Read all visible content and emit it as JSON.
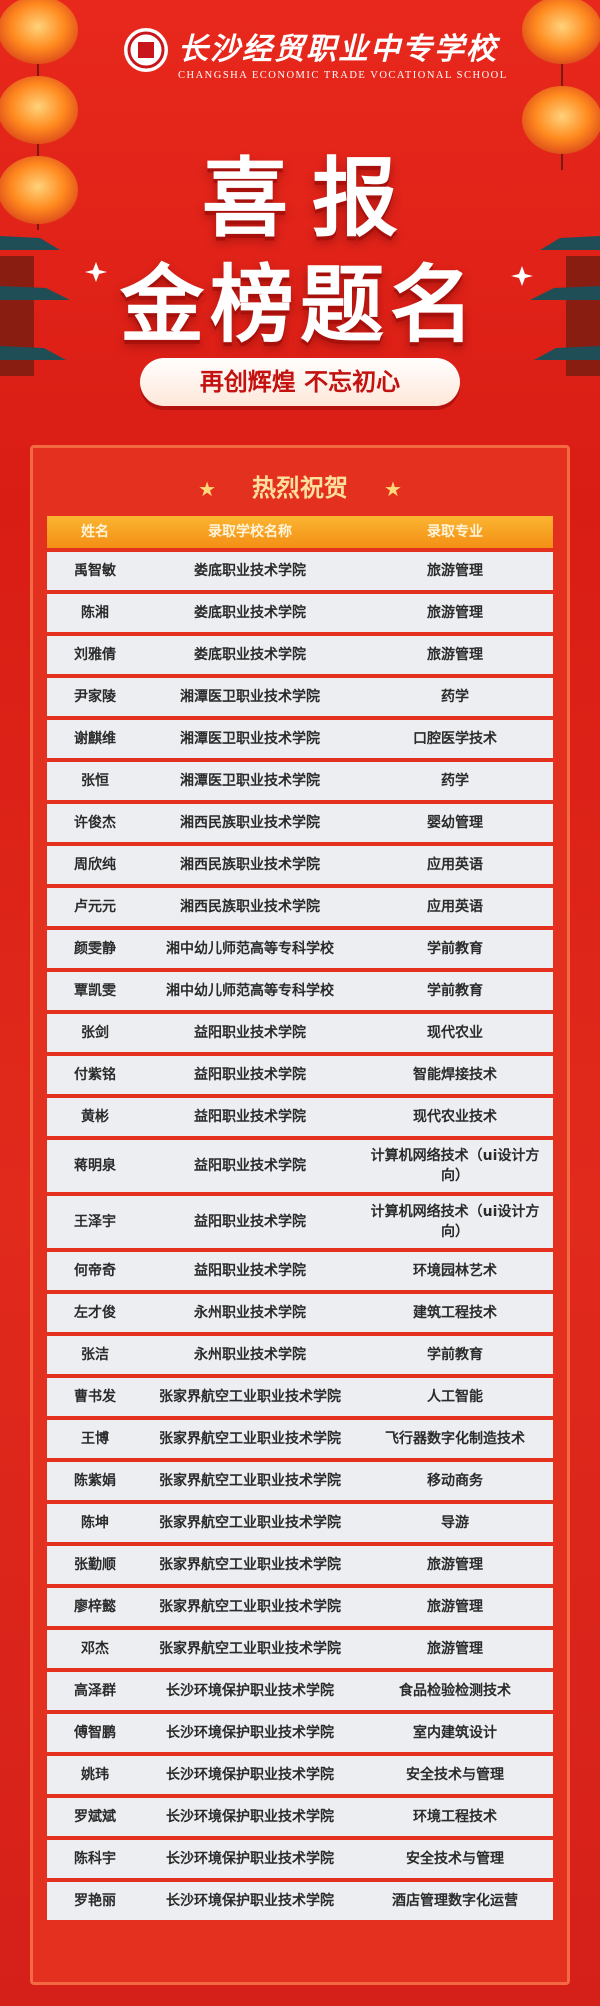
{
  "header": {
    "school_name": "长沙经贸职业中专学校",
    "school_name_en": "CHANGSHA ECONOMIC TRADE VOCATIONAL SCHOOL"
  },
  "title": {
    "line1": "喜报",
    "line2": "金榜题名"
  },
  "slogan": "再创辉煌 不忘初心",
  "section_title": "热烈祝贺",
  "table": {
    "columns": [
      "姓名",
      "录取学校名称",
      "录取专业"
    ],
    "rows": [
      [
        "禹智敏",
        "娄底职业技术学院",
        "旅游管理"
      ],
      [
        "陈湘",
        "娄底职业技术学院",
        "旅游管理"
      ],
      [
        "刘雅倩",
        "娄底职业技术学院",
        "旅游管理"
      ],
      [
        "尹家陵",
        "湘潭医卫职业技术学院",
        "药学"
      ],
      [
        "谢麒维",
        "湘潭医卫职业技术学院",
        "口腔医学技术"
      ],
      [
        "张恒",
        "湘潭医卫职业技术学院",
        "药学"
      ],
      [
        "许俊杰",
        "湘西民族职业技术学院",
        "婴幼管理"
      ],
      [
        "周欣纯",
        "湘西民族职业技术学院",
        "应用英语"
      ],
      [
        "卢元元",
        "湘西民族职业技术学院",
        "应用英语"
      ],
      [
        "颜雯静",
        "湘中幼儿师范高等专科学校",
        "学前教育"
      ],
      [
        "覃凯雯",
        "湘中幼儿师范高等专科学校",
        "学前教育"
      ],
      [
        "张剑",
        "益阳职业技术学院",
        "现代农业"
      ],
      [
        "付紫铭",
        "益阳职业技术学院",
        "智能焊接技术"
      ],
      [
        "黄彬",
        "益阳职业技术学院",
        "现代农业技术"
      ],
      [
        "蒋明泉",
        "益阳职业技术学院",
        "计算机网络技术（ui设计方向）"
      ],
      [
        "王泽宇",
        "益阳职业技术学院",
        "计算机网络技术（ui设计方向）"
      ],
      [
        "何帝奇",
        "益阳职业技术学院",
        "环境园林艺术"
      ],
      [
        "左才俊",
        "永州职业技术学院",
        "建筑工程技术"
      ],
      [
        "张洁",
        "永州职业技术学院",
        "学前教育"
      ],
      [
        "曹书发",
        "张家界航空工业职业技术学院",
        "人工智能"
      ],
      [
        "王博",
        "张家界航空工业职业技术学院",
        "飞行器数字化制造技术"
      ],
      [
        "陈紫娟",
        "张家界航空工业职业技术学院",
        "移动商务"
      ],
      [
        "陈坤",
        "张家界航空工业职业技术学院",
        "导游"
      ],
      [
        "张勤顺",
        "张家界航空工业职业技术学院",
        "旅游管理"
      ],
      [
        "廖梓懿",
        "张家界航空工业职业技术学院",
        "旅游管理"
      ],
      [
        "邓杰",
        "张家界航空工业职业技术学院",
        "旅游管理"
      ],
      [
        "高泽群",
        "长沙环境保护职业技术学院",
        "食品检验检测技术"
      ],
      [
        "傅智鹏",
        "长沙环境保护职业技术学院",
        "室内建筑设计"
      ],
      [
        "姚玮",
        "长沙环境保护职业技术学院",
        "安全技术与管理"
      ],
      [
        "罗斌斌",
        "长沙环境保护职业技术学院",
        "环境工程技术"
      ],
      [
        "陈科宇",
        "长沙环境保护职业技术学院",
        "安全技术与管理"
      ],
      [
        "罗艳丽",
        "长沙环境保护职业技术学院",
        "酒店管理数字化运营"
      ]
    ]
  }
}
